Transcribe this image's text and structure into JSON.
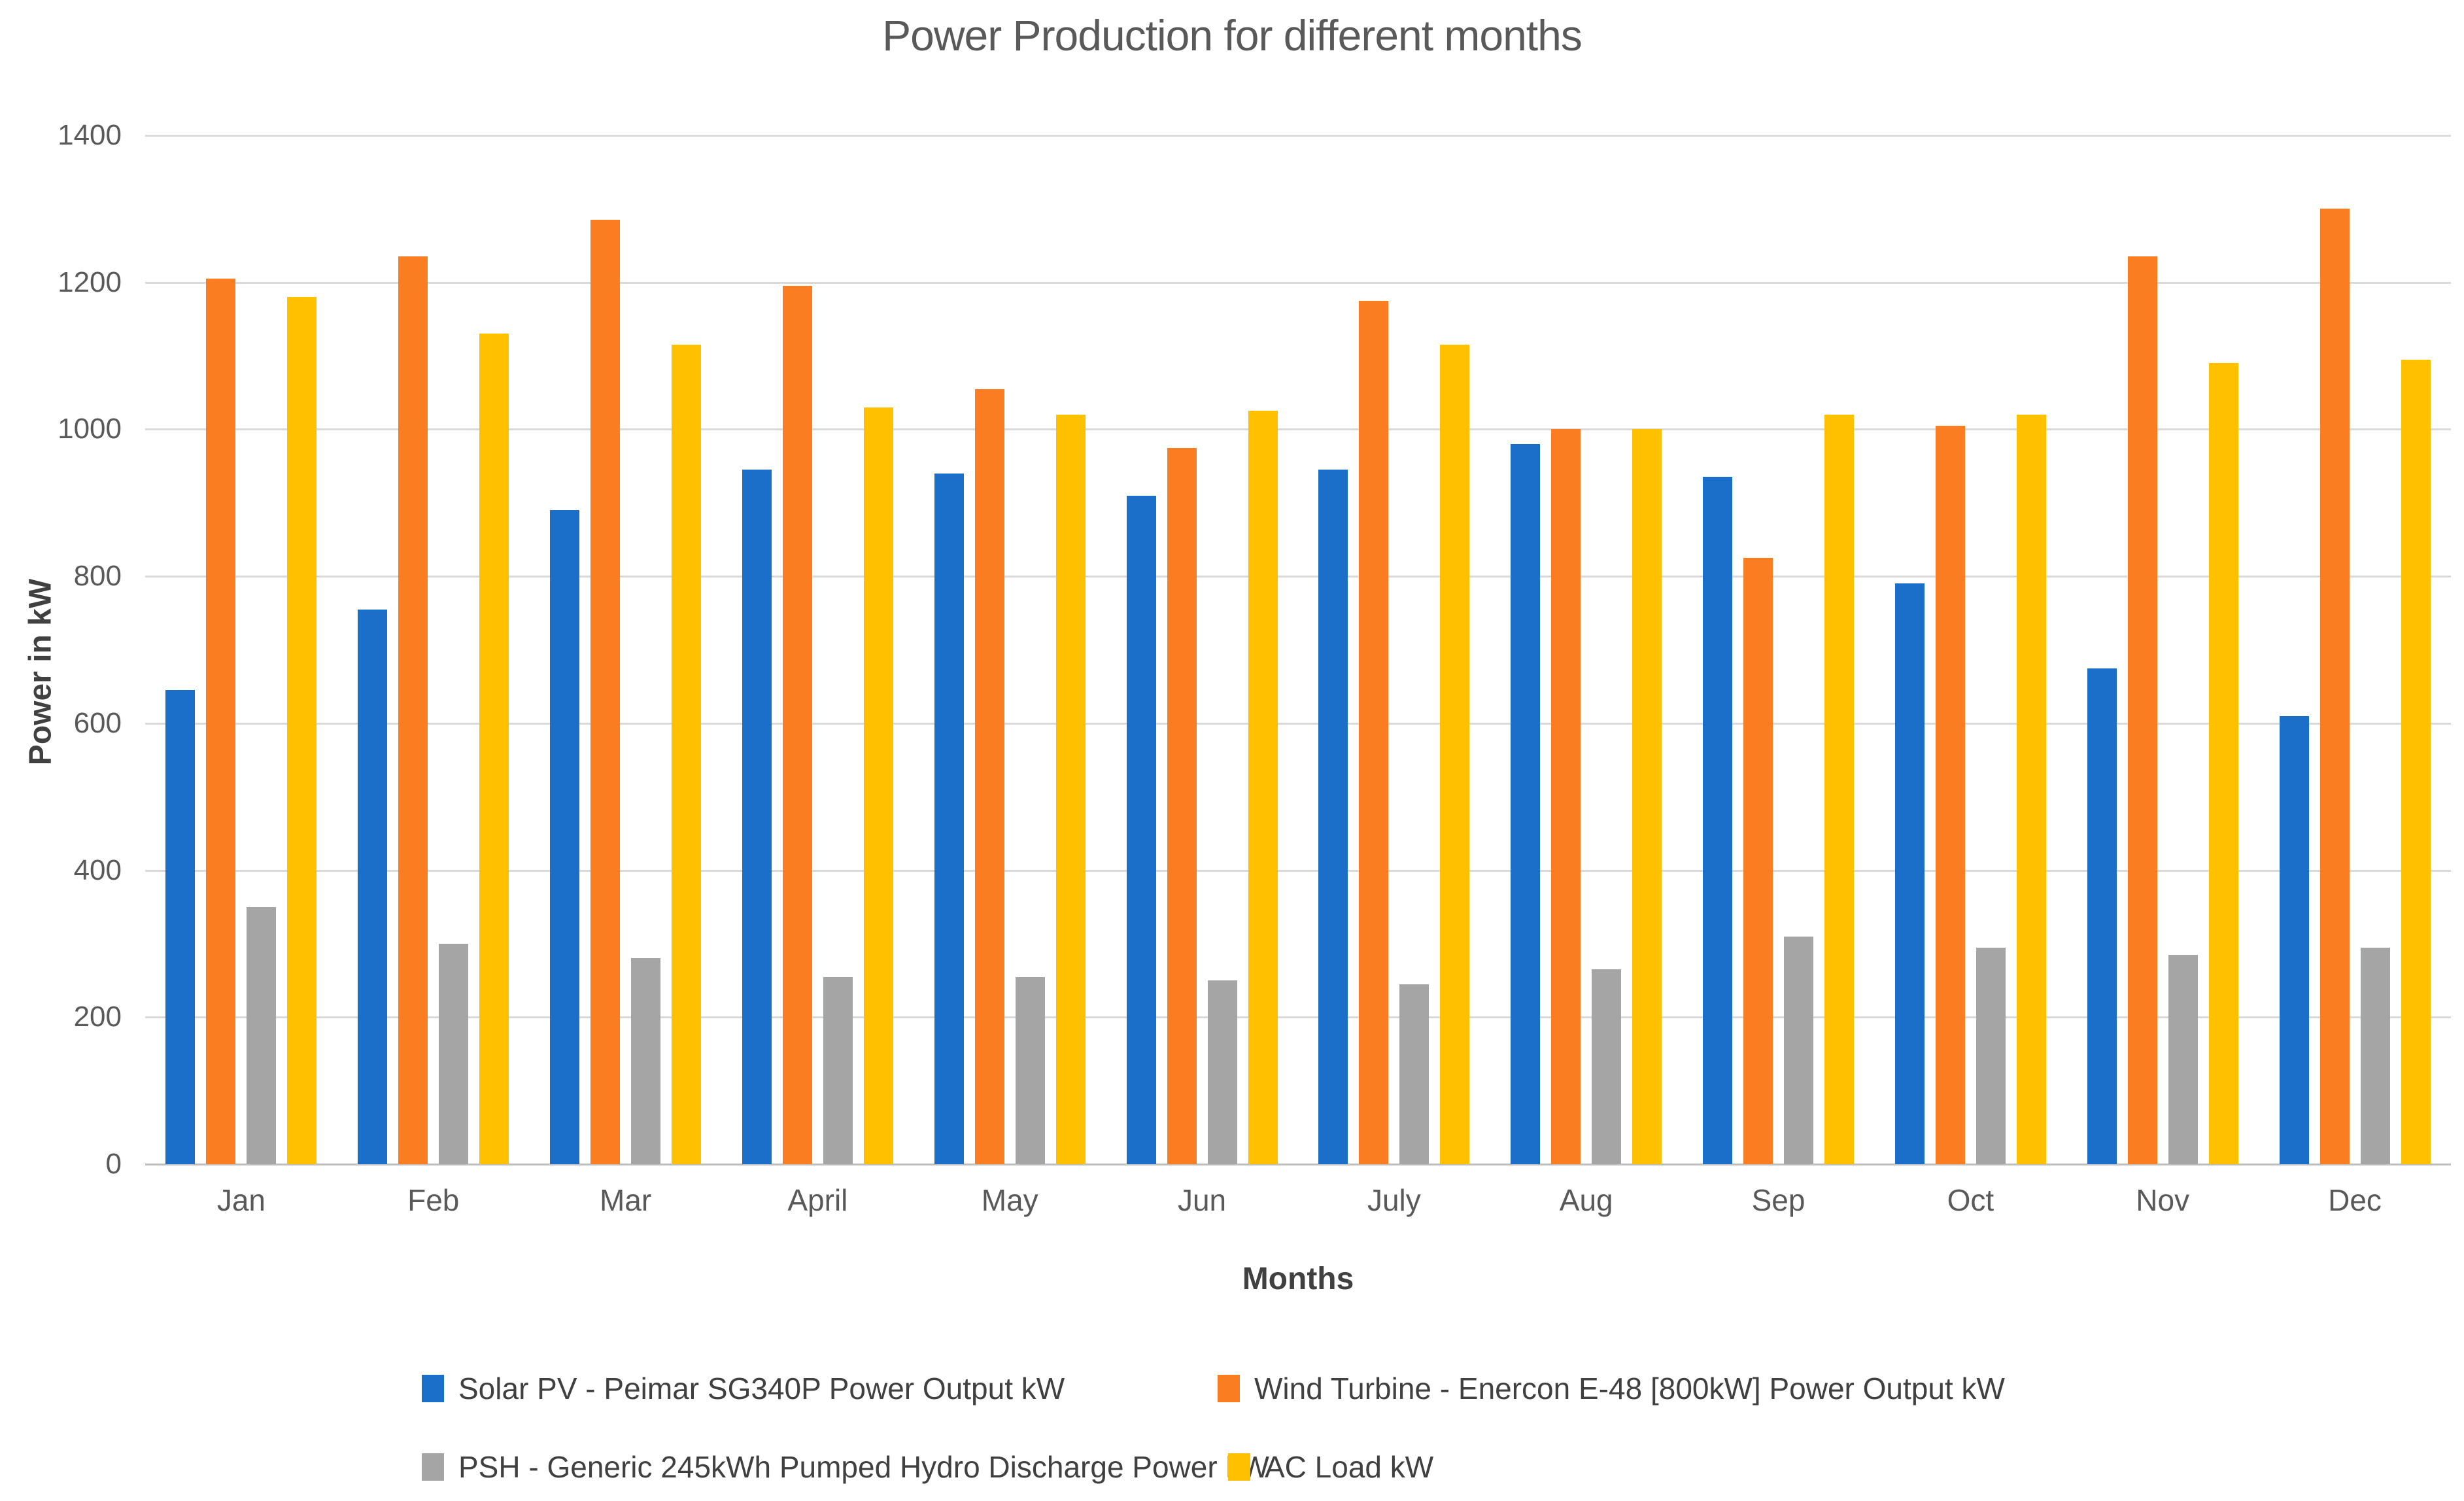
{
  "chart": {
    "title": "Power Production for different months",
    "y_axis_title": "Power in kW",
    "x_axis_title": "Months"
  },
  "chart_data": {
    "type": "bar",
    "title": "Power Production for different months",
    "xlabel": "Months",
    "ylabel": "Power in kW",
    "ylim": [
      0,
      1400
    ],
    "ytick_step": 200,
    "ytick_labels": [
      "0",
      "200",
      "400",
      "600",
      "800",
      "1000",
      "1200",
      "1400"
    ],
    "grid": true,
    "legend_position": "bottom",
    "categories": [
      "Jan",
      "Feb",
      "Mar",
      "April",
      "May",
      "Jun",
      "July",
      "Aug",
      "Sep",
      "Oct",
      "Nov",
      "Dec"
    ],
    "series": [
      {
        "name": "Solar PV - Peimar SG340P Power Output kW",
        "color": "#1b6fc9",
        "values": [
          645,
          755,
          890,
          945,
          940,
          910,
          945,
          980,
          935,
          790,
          675,
          610
        ]
      },
      {
        "name": "Wind Turbine - Enercon E-48 [800kW] Power Output kW",
        "color": "#fb7d22",
        "values": [
          1205,
          1235,
          1285,
          1195,
          1055,
          975,
          1175,
          1000,
          825,
          1005,
          1235,
          1300
        ]
      },
      {
        "name": "PSH - Generic 245kWh Pumped Hydro Discharge Power kW",
        "color": "#a5a5a5",
        "values": [
          350,
          300,
          280,
          255,
          255,
          250,
          245,
          265,
          310,
          295,
          285,
          295
        ]
      },
      {
        "name": "AC Load kW",
        "color": "#ffc000",
        "values": [
          1180,
          1130,
          1115,
          1030,
          1020,
          1025,
          1115,
          1000,
          1020,
          1020,
          1090,
          1095
        ]
      }
    ]
  }
}
